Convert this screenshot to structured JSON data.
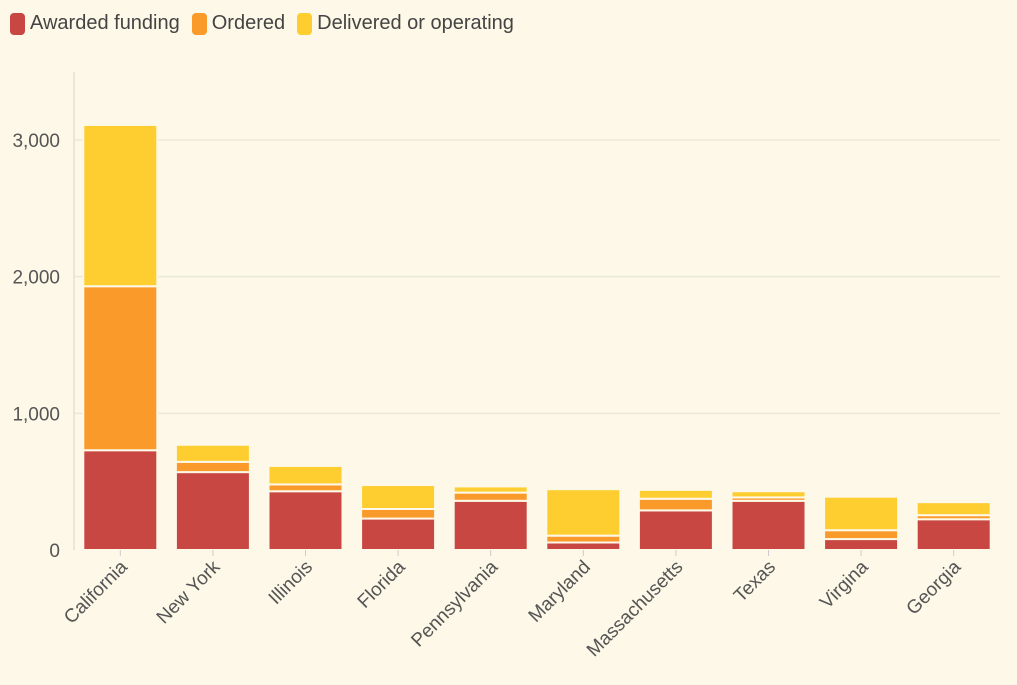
{
  "chart_data": {
    "type": "bar",
    "stacked": true,
    "title": "",
    "xlabel": "",
    "ylabel": "",
    "ylim": [
      0,
      3500
    ],
    "yticks": [
      0,
      1000,
      2000,
      3000
    ],
    "ytick_labels": [
      "0",
      "1,000",
      "2,000",
      "3,000"
    ],
    "categories": [
      "California",
      "New York",
      "Illinois",
      "Florida",
      "Pennsylvania",
      "Maryland",
      "Massachusetts",
      "Texas",
      "Virgina",
      "Georgia"
    ],
    "series": [
      {
        "name": "Awarded funding",
        "color": "#c94743",
        "values": [
          730,
          570,
          430,
          230,
          360,
          55,
          290,
          360,
          80,
          225
        ]
      },
      {
        "name": "Ordered",
        "color": "#fa9a2a",
        "values": [
          1200,
          75,
          50,
          70,
          60,
          50,
          85,
          25,
          65,
          30
        ]
      },
      {
        "name": "Delivered or operating",
        "color": "#fecd2f",
        "values": [
          1180,
          125,
          135,
          175,
          45,
          340,
          65,
          45,
          245,
          95
        ]
      }
    ],
    "legend_position": "top-left",
    "grid": true
  }
}
